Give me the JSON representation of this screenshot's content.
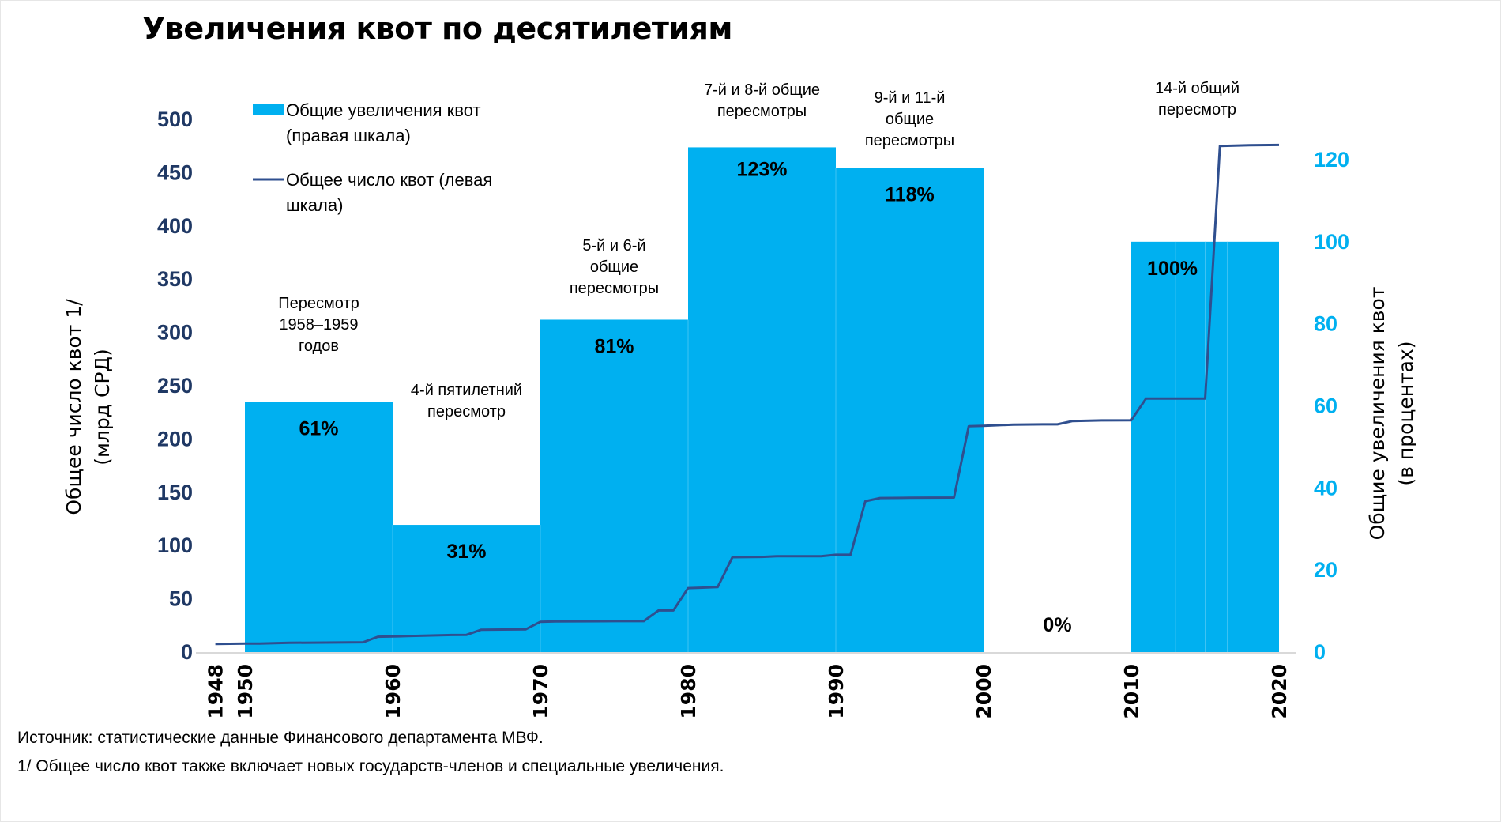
{
  "chart_data": {
    "type": "bar+line",
    "title": "Увеличения квот по десятилетиям",
    "x_ticks": [
      "1948",
      "1950",
      "1960",
      "1970",
      "1980",
      "1990",
      "2000",
      "2010",
      "2020"
    ],
    "left_axis": {
      "label_lines": [
        "Общее число квот 1/",
        "(млрд СРД)"
      ],
      "range": [
        0,
        500
      ],
      "ticks": [
        "0",
        "50",
        "100",
        "150",
        "200",
        "250",
        "300",
        "350",
        "400",
        "450",
        "500"
      ],
      "color": "#1f3864"
    },
    "right_axis": {
      "label_lines": [
        "Общие увеличения квот",
        "(в процентах)"
      ],
      "range": [
        0,
        130
      ],
      "ticks": [
        "0",
        "20",
        "40",
        "60",
        "80",
        "100",
        "120"
      ],
      "color": "#00b0f0"
    },
    "legend": {
      "position": "top-left",
      "entries": [
        {
          "lines": [
            "Общие увеличения квот",
            "(правая шкала)"
          ],
          "type": "bar",
          "color": "#00b0f0"
        },
        {
          "lines": [
            "Общее число квот (левая",
            "шкала)"
          ],
          "type": "line",
          "color": "#2f4f8f"
        }
      ]
    },
    "bars": [
      {
        "start": 1950,
        "end": 1960,
        "value": 61,
        "label": "61%",
        "annotation": [
          "Пересмотр",
          "1958–1959",
          "годов"
        ]
      },
      {
        "start": 1960,
        "end": 1970,
        "value": 31,
        "label": "31%",
        "annotation": [
          "4-й пятилетний",
          "пересмотр"
        ]
      },
      {
        "start": 1970,
        "end": 1980,
        "value": 81,
        "label": "81%",
        "annotation": [
          "5-й и 6-й",
          "общие",
          "пересмотры"
        ]
      },
      {
        "start": 1980,
        "end": 1990,
        "value": 123,
        "label": "123%",
        "annotation": [
          "7-й и 8-й общие",
          "пересмотры"
        ]
      },
      {
        "start": 1990,
        "end": 2000,
        "value": 118,
        "label": "118%",
        "annotation": [
          "9-й и 11-й",
          "общие",
          "пересмотры"
        ]
      },
      {
        "start": 2000,
        "end": 2010,
        "value": 0,
        "label": "0%",
        "annotation": []
      },
      {
        "start": 2010,
        "end": 2020,
        "value": 100,
        "label": "100%",
        "annotation": [
          "14-й общий",
          "пересмотр"
        ]
      }
    ],
    "line_series": {
      "name": "Общее число квот (левая шкала)",
      "x": [
        1948,
        1950,
        1951,
        1953,
        1958,
        1959,
        1961,
        1964,
        1965,
        1966,
        1969,
        1970,
        1971,
        1975,
        1977,
        1978,
        1979,
        1980,
        1982,
        1983,
        1985,
        1986,
        1989,
        1990,
        1991,
        1992,
        1993,
        1995,
        1998,
        1999,
        2000,
        2002,
        2004,
        2005,
        2006,
        2008,
        2010,
        2011,
        2015,
        2016,
        2018,
        2020
      ],
      "y": [
        7.6,
        8,
        8,
        8.7,
        9.2,
        14.4,
        15,
        16,
        16.2,
        21,
        21.3,
        28.4,
        28.8,
        29,
        29,
        39,
        39,
        60,
        61,
        89,
        89.3,
        90,
        90,
        91.3,
        91.5,
        141.6,
        144.6,
        144.8,
        145,
        212,
        212.4,
        213.5,
        213.7,
        213.7,
        216.8,
        217.4,
        217.6,
        238,
        238,
        475,
        475.7,
        476
      ]
    }
  },
  "footnotes": {
    "source": "Источник: статистические данные Финансового департамента МВФ.",
    "note": "1/ Общее число квот также включает новых государств-членов и специальные увеличения."
  }
}
